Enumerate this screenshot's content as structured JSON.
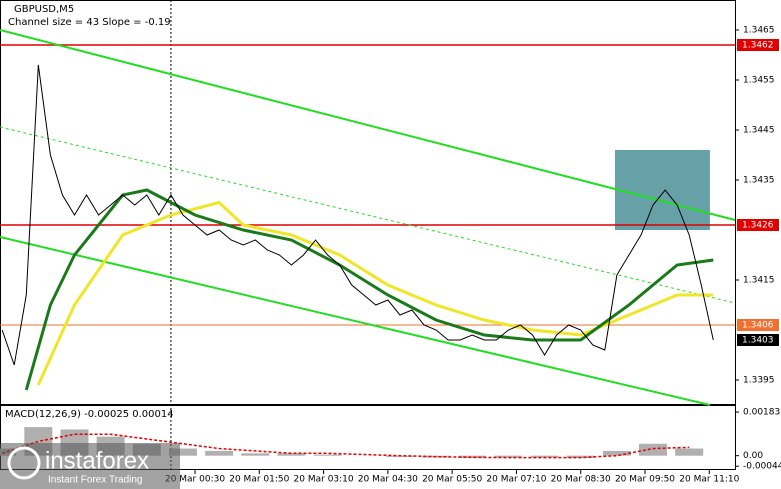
{
  "chart_data": [
    {
      "type": "line",
      "title": "GBPUSD,M5",
      "subtitle": "Channel size = 43 Slope = -0.19",
      "xlim": [
        -3.545,
        11.7
      ],
      "ylim": [
        1.339,
        1.3471
      ],
      "yticks": [
        1.3465,
        1.3455,
        1.3445,
        1.3435,
        1.3415,
        1.3395
      ],
      "xticks": [
        {
          "value": 0.5,
          "label": "20 Mar 00:30"
        },
        {
          "value": 1.833,
          "label": "20 Mar 01:50"
        },
        {
          "value": 3.167,
          "label": "20 Mar 03:10"
        },
        {
          "value": 4.5,
          "label": "20 Mar 04:30"
        },
        {
          "value": 5.833,
          "label": "20 Mar 05:50"
        },
        {
          "value": 7.167,
          "label": "20 Mar 07:10"
        },
        {
          "value": 8.5,
          "label": "20 Mar 08:30"
        },
        {
          "value": 9.833,
          "label": "20 Mar 09:50"
        },
        {
          "value": 11.167,
          "label": "20 Mar 11:10"
        }
      ],
      "series": [
        {
          "color": "#000000",
          "x": [
            -3.5,
            -3.25,
            -3,
            -2.75,
            -2.5,
            -2.25,
            -2,
            -1.75,
            -1.5,
            -1.25,
            -1,
            -0.75,
            -0.5,
            -0.25,
            0,
            0.25,
            0.5,
            0.75,
            1,
            1.25,
            1.5,
            1.75,
            2,
            2.25,
            2.5,
            2.75,
            3,
            3.25,
            3.5,
            3.75,
            4,
            4.25,
            4.5,
            4.75,
            5,
            5.25,
            5.5,
            5.75,
            6,
            6.25,
            6.5,
            6.75,
            7,
            7.25,
            7.5,
            7.75,
            8,
            8.25,
            8.5,
            8.75,
            9,
            9.25,
            9.5,
            9.75,
            10,
            10.25,
            10.5,
            10.75,
            11,
            11.25
          ],
          "values": [
            1.3405,
            1.3398,
            1.3412,
            1.3458,
            1.344,
            1.3432,
            1.3428,
            1.3432,
            1.3428,
            1.343,
            1.3432,
            1.343,
            1.3432,
            1.3428,
            1.3432,
            1.3428,
            1.3426,
            1.3424,
            1.3425,
            1.3423,
            1.3422,
            1.3423,
            1.3421,
            1.342,
            1.3418,
            1.342,
            1.3423,
            1.342,
            1.3418,
            1.3414,
            1.3412,
            1.341,
            1.3411,
            1.3408,
            1.3409,
            1.3406,
            1.3405,
            1.3403,
            1.3403,
            1.3404,
            1.3403,
            1.3403,
            1.3405,
            1.3406,
            1.3404,
            1.34,
            1.3404,
            1.3406,
            1.3405,
            1.3402,
            1.3401,
            1.3416,
            1.342,
            1.3424,
            1.343,
            1.3433,
            1.343,
            1.3424,
            1.3414,
            1.3403
          ]
        },
        {
          "color": "#f0e628",
          "x": [
            -2.75,
            -2,
            -1,
            0,
            1,
            1.5,
            2.5,
            3.5,
            4.5,
            5.5,
            6.5,
            7.5,
            8.5,
            9.5,
            10.5,
            11.25
          ],
          "values": [
            1.3394,
            1.341,
            1.3424,
            1.3428,
            1.34305,
            1.3426,
            1.3424,
            1.342,
            1.3414,
            1.341,
            1.3407,
            1.3405,
            1.3404,
            1.3408,
            1.3412,
            1.3412
          ]
        },
        {
          "color": "#1a7a1a",
          "x": [
            -3,
            -2.5,
            -2,
            -1.5,
            -1,
            -0.5,
            0.5,
            1.5,
            2.5,
            3.5,
            4.5,
            5.5,
            6.5,
            7.5,
            8.5,
            9.5,
            10.5,
            11.25
          ],
          "values": [
            1.3393,
            1.341,
            1.342,
            1.3426,
            1.3432,
            1.3433,
            1.3428,
            1.3425,
            1.3423,
            1.3418,
            1.3412,
            1.3407,
            1.3404,
            1.3403,
            1.3403,
            1.341,
            1.3418,
            1.3419
          ]
        }
      ],
      "trend_lines": [
        {
          "x": [
            -3.545,
            11.7
          ],
          "values": [
            1.3465,
            1.3427
          ],
          "color": "#22dd22"
        },
        {
          "x": [
            -3.545,
            11.18
          ],
          "values": [
            1.34236,
            1.339
          ],
          "color": "#22dd22"
        },
        {
          "x": [
            -3.545,
            11.7
          ],
          "values": [
            1.34456,
            1.34104
          ],
          "color": "#22dd22",
          "dashed": true
        }
      ],
      "levels": [
        {
          "value": 1.3462,
          "color": "#e00000"
        },
        {
          "value": 1.3426,
          "color": "#e00000"
        },
        {
          "value": 1.3406,
          "color": "#f07030"
        }
      ],
      "last_price": 1.3403,
      "zone": {
        "x": [
          9.21,
          11.18
        ],
        "values": [
          1.3425,
          1.3441
        ],
        "color": "#4a9098"
      },
      "separator_x": 0
    },
    {
      "type": "bar",
      "title": "MACD(12,26,9) -0.00025 0.00014",
      "xlim": [
        -3.545,
        11.7
      ],
      "ylim": [
        -0.0006,
        0.002
      ],
      "yticks": [
        0.00183,
        {
          "value": 0,
          "label": "0.00"
        },
        -0.00044
      ],
      "x": [
        -3.5,
        -2.75,
        -2,
        -1.25,
        -0.5,
        0.25,
        1,
        1.75,
        2.5,
        3.25,
        4,
        4.75,
        5.5,
        6.25,
        7,
        7.75,
        8.5,
        9.25,
        10,
        10.75
      ],
      "values": [
        0.0003,
        0.0012,
        0.0011,
        0.0008,
        0.0005,
        0.0003,
        0.0002,
        0.0001,
        0.0001,
        5e-05,
        0,
        -5e-05,
        -8e-05,
        -0.0001,
        -8e-05,
        -8e-05,
        -0.0001,
        0.0002,
        0.0005,
        0.0003
      ],
      "color": "#b0b0b0",
      "signal": {
        "color": "#e00000",
        "values": [
          0.0001,
          0.0006,
          0.0009,
          0.0009,
          0.0007,
          0.0005,
          0.0003,
          0.0002,
          0.0001,
          0.0001,
          5e-05,
          0,
          -4e-05,
          -7e-05,
          -8e-05,
          -8e-05,
          -8e-05,
          0,
          0.0003,
          0.00035
        ]
      }
    }
  ],
  "branding": {
    "name": "instaforex",
    "tagline": "Instant Forex Trading"
  }
}
